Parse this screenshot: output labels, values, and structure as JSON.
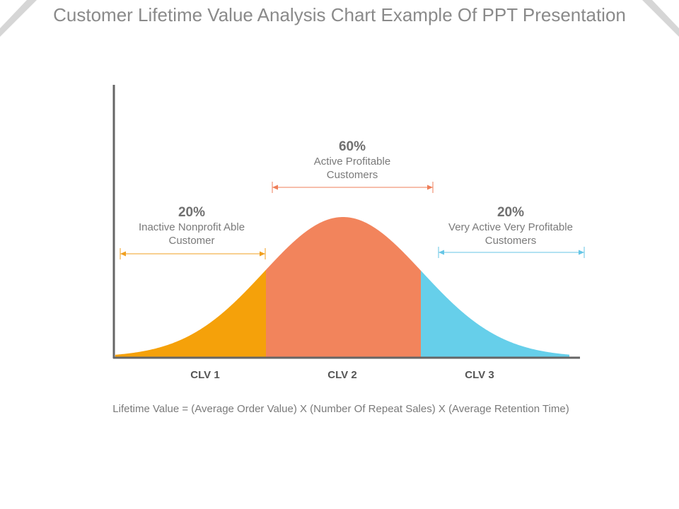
{
  "title": "Customer Lifetime Value Analysis Chart Example Of PPT Presentation",
  "segments": [
    {
      "category": "CLV 1",
      "percent": "20%",
      "description_line1": "Inactive Nonprofit Able",
      "description_line2": "Customer",
      "color": "#f5a10a",
      "arrow_color": "#f0a020"
    },
    {
      "category": "CLV 2",
      "percent": "60%",
      "description_line1": "Active Profitable",
      "description_line2": "Customers",
      "color": "#f2845c",
      "arrow_color": "#ef7e58"
    },
    {
      "category": "CLV 3",
      "percent": "20%",
      "description_line1": "Very Active Very Profitable",
      "description_line2": "Customers",
      "color": "#66cfea",
      "arrow_color": "#66c6e6"
    }
  ],
  "formula": "Lifetime Value = (Average Order Value) X (Number Of Repeat Sales) X (Average Retention Time)",
  "colors": {
    "axis": "#666666",
    "title_text": "#8a8a8a",
    "corner_decoration": "#d6d6d6"
  }
}
